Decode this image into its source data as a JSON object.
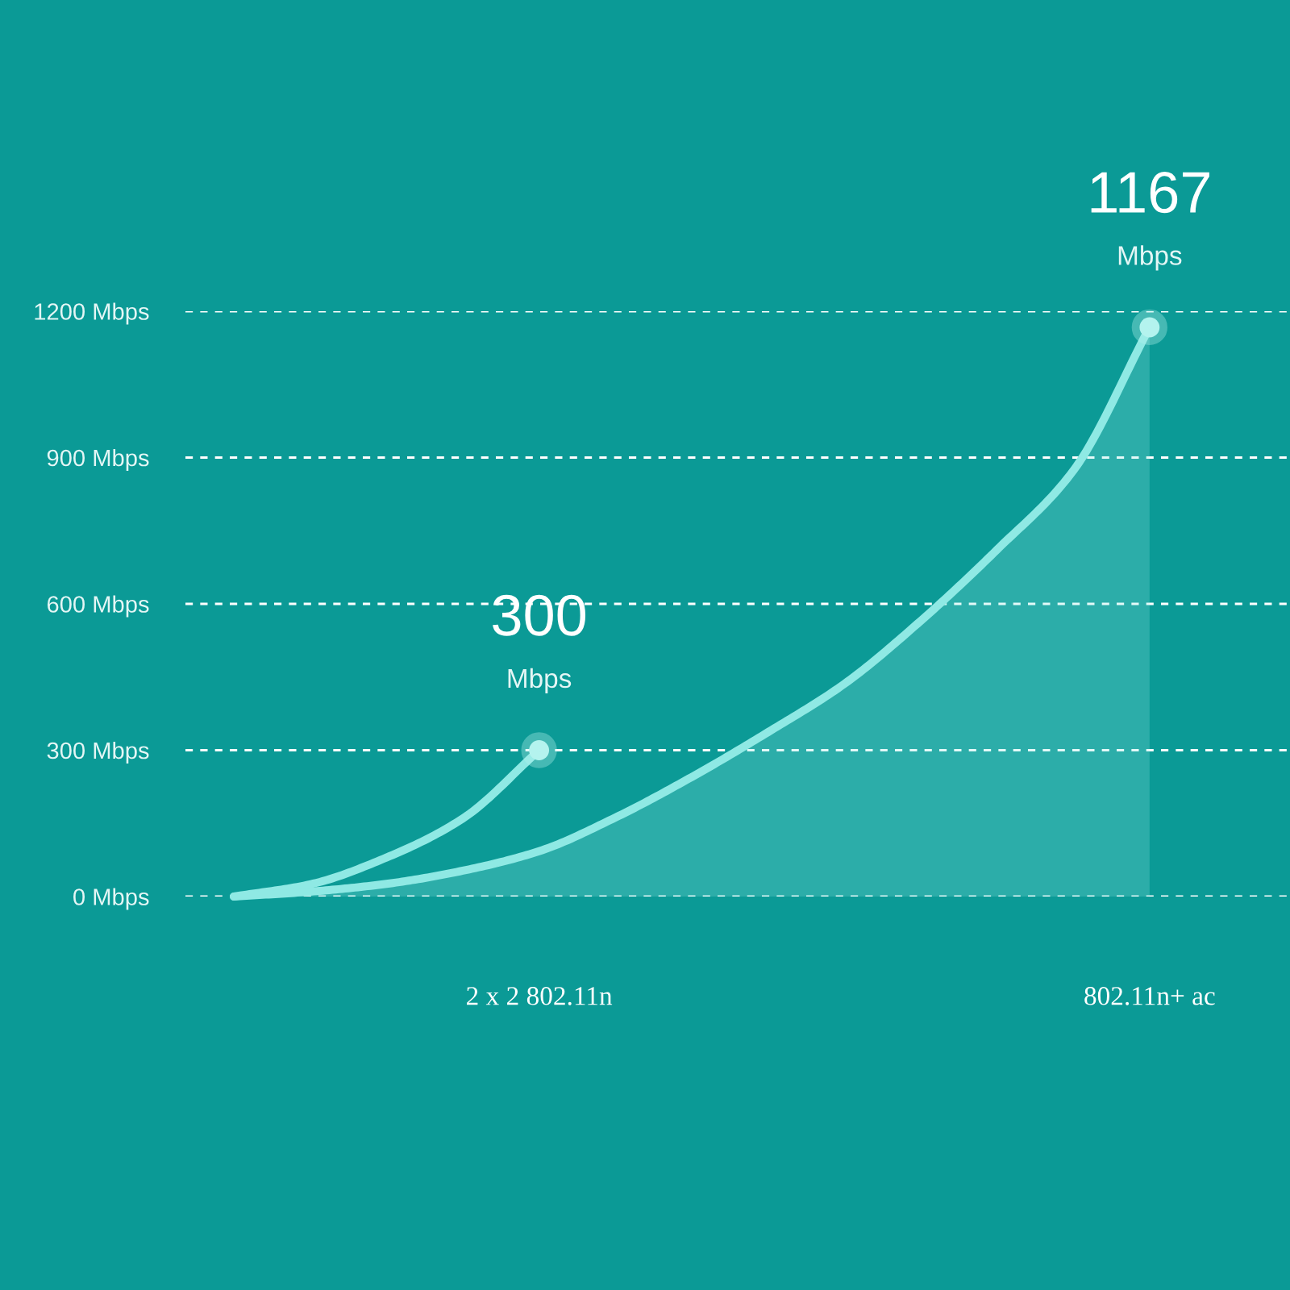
{
  "chart_data": {
    "type": "line",
    "categories": [
      null,
      null,
      null,
      null,
      "2 x 2 802.11n",
      null,
      null,
      null,
      null,
      null,
      null,
      null,
      "802.11n+ ac"
    ],
    "series": [
      {
        "color": "#8fe9e4",
        "values": [
          0,
          25,
          80,
          160,
          300,
          null,
          null,
          null,
          null,
          null,
          null,
          null,
          null
        ]
      },
      {
        "type": "area",
        "color": "#8fe9e4",
        "values": [
          0,
          10,
          26,
          53,
          93,
          162,
          245,
          337,
          436,
          565,
          711,
          873,
          1167
        ]
      },
      {
        "type": "scatter",
        "color": "#b4f3ef",
        "marker": "circle",
        "x": [
          "2 x 2 802.11n",
          "802.11n+ ac"
        ],
        "values": [
          300,
          1167
        ],
        "value_labels": [
          "300\nMbps",
          "1167\nMbps"
        ]
      }
    ],
    "ylim": [
      0,
      1200
    ],
    "yticks": [
      {
        "value": 0,
        "label": "0 Mbps"
      },
      {
        "value": 300,
        "label": "300 Mbps"
      },
      {
        "value": 600,
        "label": "600 Mbps"
      },
      {
        "value": 900,
        "label": "900 Mbps"
      },
      {
        "value": 1200,
        "label": "1200 Mbps"
      }
    ],
    "grid": "y"
  }
}
